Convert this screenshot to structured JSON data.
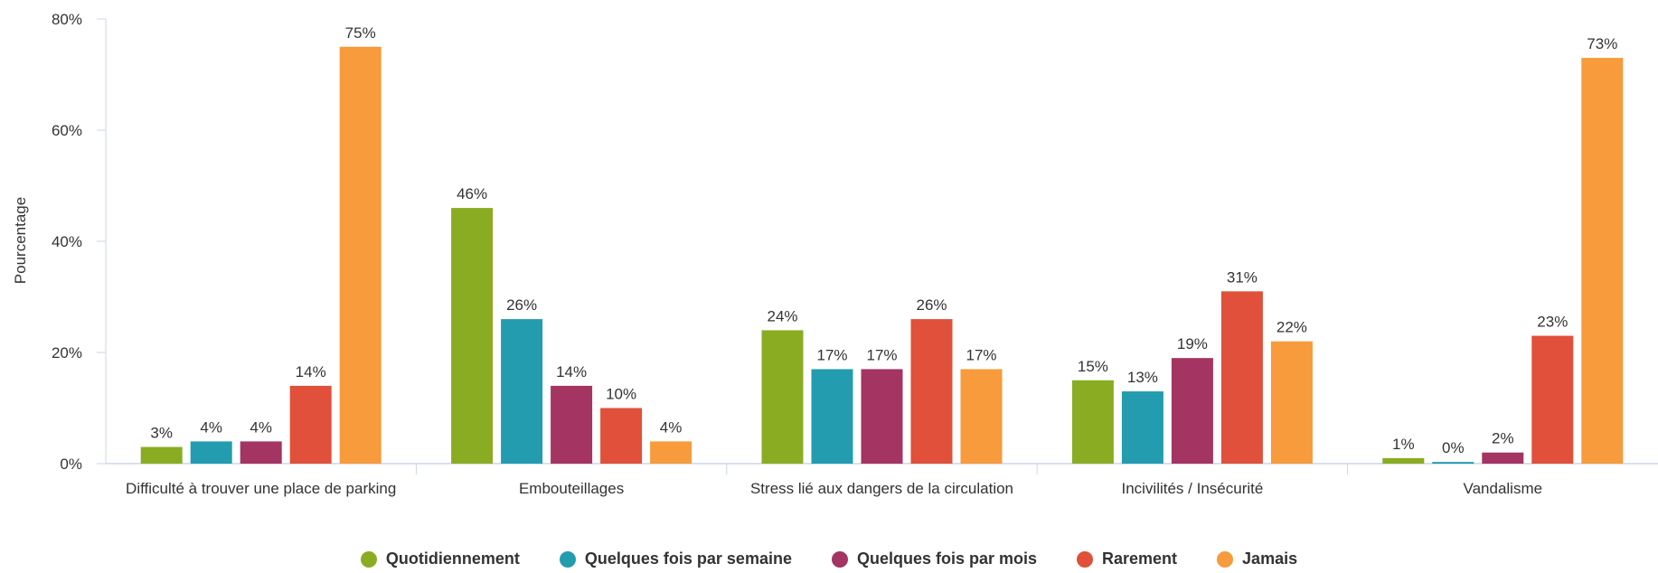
{
  "chart_data": {
    "type": "bar",
    "ylabel": "Pourcentage",
    "categories": [
      "Difficulté à trouver une place de parking",
      "Embouteillages",
      "Stress lié aux dangers de la circulation",
      "Incivilités / Insécurité",
      "Vandalisme"
    ],
    "series": [
      {
        "name": "Quotidiennement",
        "color": "#8aac23",
        "values": [
          3,
          46,
          24,
          15,
          1
        ],
        "value_labels": [
          "3%",
          "46%",
          "24%",
          "15%",
          "1%"
        ]
      },
      {
        "name": "Quelques fois par semaine",
        "color": "#239caf",
        "values": [
          4,
          26,
          17,
          13,
          0.3
        ],
        "value_labels": [
          "4%",
          "26%",
          "17%",
          "13%",
          "0%"
        ]
      },
      {
        "name": "Quelques fois par mois",
        "color": "#a43462",
        "values": [
          4,
          14,
          17,
          19,
          2
        ],
        "value_labels": [
          "4%",
          "14%",
          "17%",
          "19%",
          "2%"
        ]
      },
      {
        "name": "Rarement",
        "color": "#e0503a",
        "values": [
          14,
          10,
          26,
          31,
          23
        ],
        "value_labels": [
          "14%",
          "10%",
          "26%",
          "31%",
          "23%"
        ]
      },
      {
        "name": "Jamais",
        "color": "#f79b3c",
        "values": [
          75,
          4,
          17,
          22,
          73
        ],
        "value_labels": [
          "75%",
          "4%",
          "17%",
          "22%",
          "73%"
        ]
      }
    ],
    "ylim": [
      0,
      80
    ],
    "yticks": [
      {
        "value": 0,
        "label": "0%"
      },
      {
        "value": 20,
        "label": "20%"
      },
      {
        "value": 40,
        "label": "40%"
      },
      {
        "value": 60,
        "label": "60%"
      },
      {
        "value": 80,
        "label": "80%"
      }
    ],
    "legend": "bottom"
  }
}
